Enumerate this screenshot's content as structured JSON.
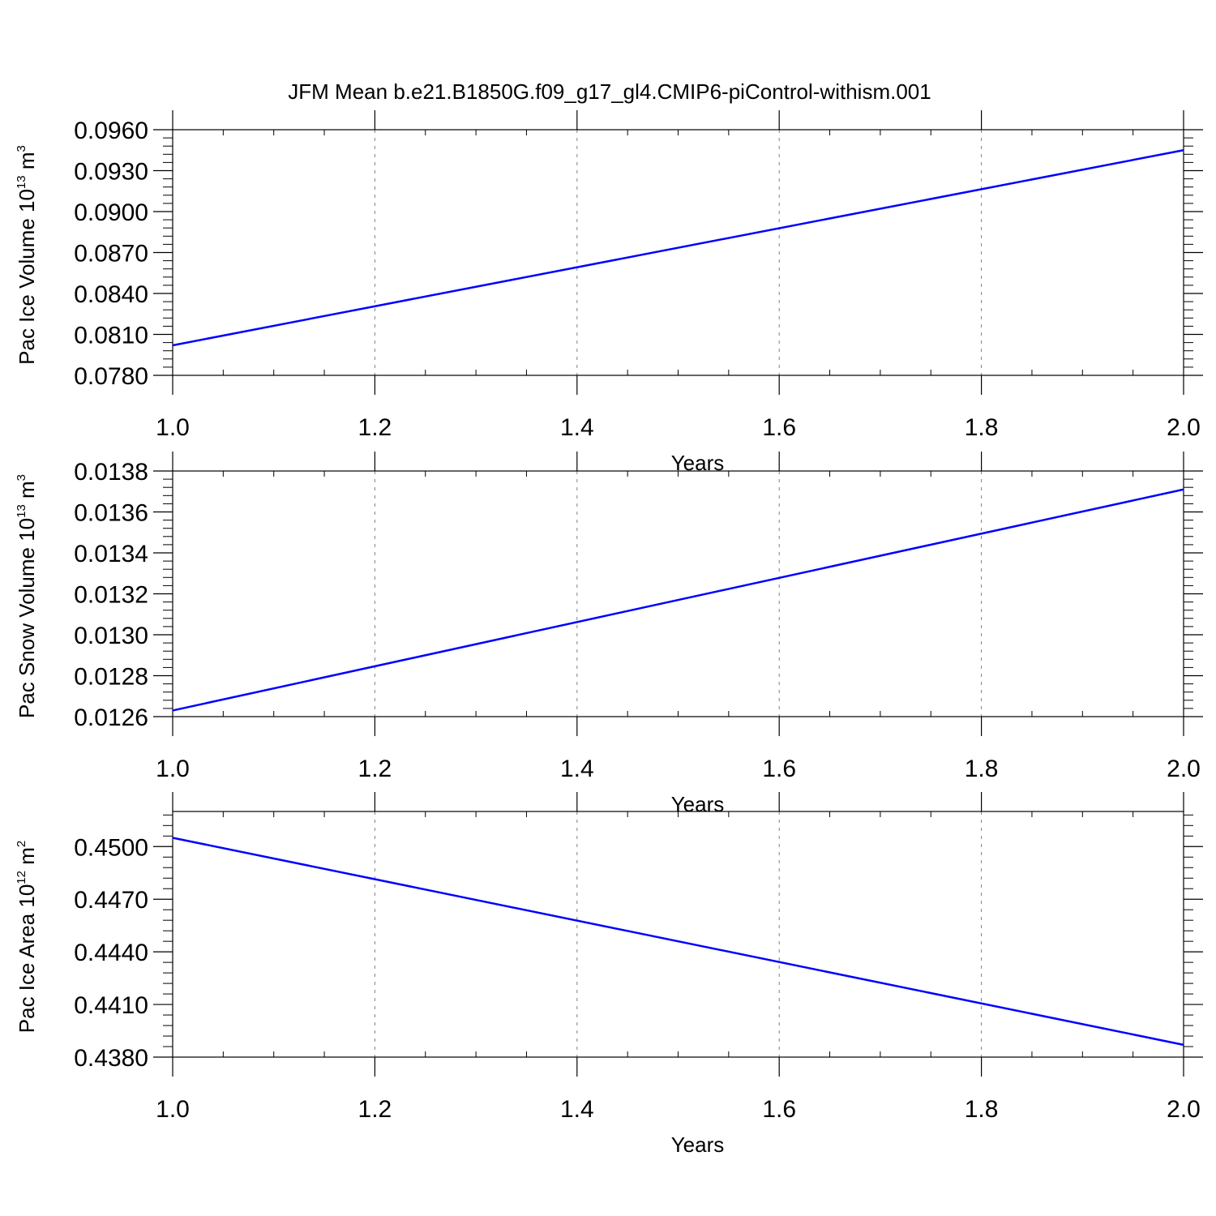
{
  "title": "JFM Mean b.e21.B1850G.f09_g17_gl4.CMIP6-piControl-withism.001",
  "colors": {
    "line": "#0000ff",
    "axes": "#000000",
    "grid": "#808080",
    "background": "#ffffff"
  },
  "chart_data": [
    {
      "type": "line",
      "xlabel": "Years",
      "ylabel": {
        "text": "Pac Ice Volume 10",
        "exponent": "13",
        "unit": " m",
        "unit_exponent": "3"
      },
      "xlim": [
        1.0,
        2.0
      ],
      "ylim": [
        0.078,
        0.096
      ],
      "xticks": [
        "1.0",
        "1.2",
        "1.4",
        "1.6",
        "1.8",
        "2.0"
      ],
      "yticks": [
        "0.0780",
        "0.0810",
        "0.0840",
        "0.0870",
        "0.0900",
        "0.0930",
        "0.0960"
      ],
      "grid": "vertical dashed",
      "series": [
        {
          "x": [
            1.0,
            2.0
          ],
          "y": [
            0.0802,
            0.0945
          ]
        }
      ]
    },
    {
      "type": "line",
      "xlabel": "Years",
      "ylabel": {
        "text": "Pac Snow Volume 10",
        "exponent": "13",
        "unit": " m",
        "unit_exponent": "3"
      },
      "xlim": [
        1.0,
        2.0
      ],
      "ylim": [
        0.0126,
        0.0138
      ],
      "xticks": [
        "1.0",
        "1.2",
        "1.4",
        "1.6",
        "1.8",
        "2.0"
      ],
      "yticks": [
        "0.0126",
        "0.0128",
        "0.0130",
        "0.0132",
        "0.0134",
        "0.0136",
        "0.0138"
      ],
      "grid": "vertical dashed",
      "series": [
        {
          "x": [
            1.0,
            2.0
          ],
          "y": [
            0.01263,
            0.01371
          ]
        }
      ]
    },
    {
      "type": "line",
      "xlabel": "Years",
      "ylabel": {
        "text": "Pac Ice Area 10",
        "exponent": "12",
        "unit": " m",
        "unit_exponent": "2"
      },
      "xlim": [
        1.0,
        2.0
      ],
      "ylim": [
        0.438,
        0.452
      ],
      "xticks": [
        "1.0",
        "1.2",
        "1.4",
        "1.6",
        "1.8",
        "2.0"
      ],
      "yticks": [
        "0.4380",
        "0.4410",
        "0.4440",
        "0.4470",
        "0.4500"
      ],
      "grid": "vertical dashed",
      "series": [
        {
          "x": [
            1.0,
            2.0
          ],
          "y": [
            0.4505,
            0.4387
          ]
        }
      ]
    }
  ]
}
